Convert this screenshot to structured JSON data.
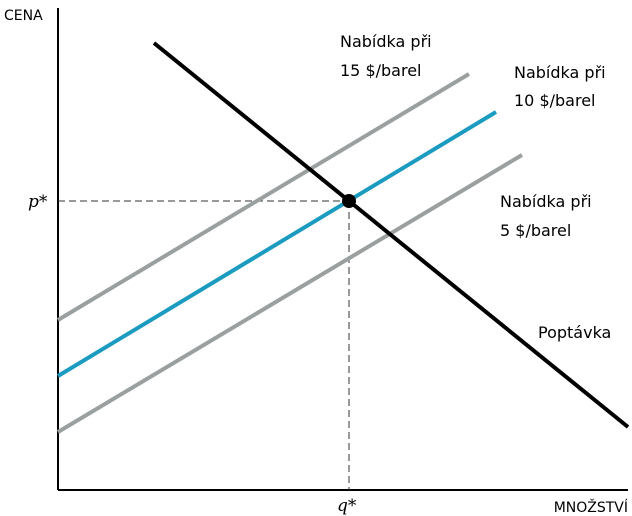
{
  "axes": {
    "y_label": "CENA",
    "x_label": "MNOŽSTVÍ"
  },
  "equilibrium": {
    "price_label": "p*",
    "quantity_label": "q*"
  },
  "curves": {
    "supply_15": {
      "line1": "Nabídka při",
      "line2": "15 $/barel",
      "color": "#9aa0a0"
    },
    "supply_10": {
      "line1": "Nabídka při",
      "line2": "10 $/barel",
      "color": "#1a9bbf"
    },
    "supply_5": {
      "line1": "Nabídka při",
      "line2": "5 $/barel",
      "color": "#9aa0a0"
    },
    "demand": {
      "label": "Poptávka",
      "color": "#000000"
    }
  }
}
